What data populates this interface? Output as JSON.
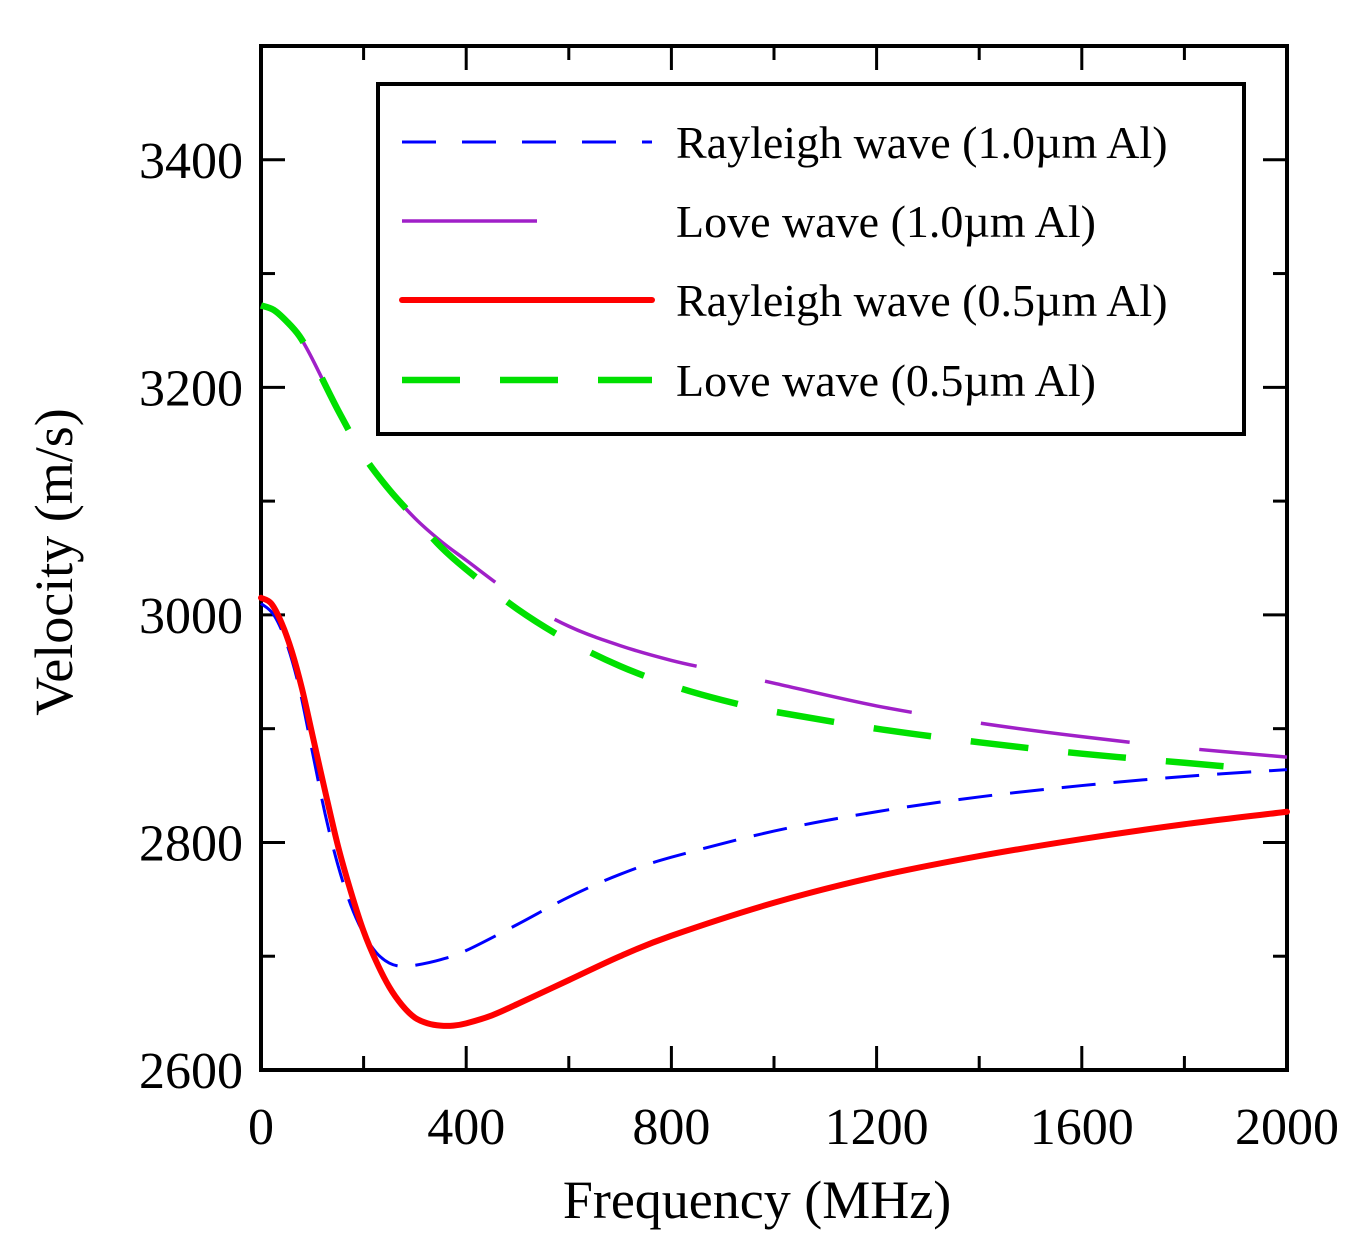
{
  "chart_data": {
    "type": "line",
    "title": "",
    "xlabel": "Frequency (MHz)",
    "ylabel": "Velocity (m/s)",
    "xlim": [
      0,
      2000
    ],
    "ylim": [
      2600,
      3500
    ],
    "x_ticks": [
      0,
      400,
      800,
      1200,
      1600,
      2000
    ],
    "x_tick_labels": [
      "0",
      "400",
      "800",
      "1200",
      "1600",
      "2000"
    ],
    "y_ticks": [
      2600,
      2800,
      3000,
      3200,
      3400
    ],
    "y_tick_labels": [
      "2600",
      "2800",
      "3000",
      "3200",
      "3400"
    ],
    "grid": false,
    "legend_position": "top-right",
    "series": [
      {
        "name": "Rayleigh wave (1.0µm Al)",
        "color": "#0000ff",
        "style": "dashed-short",
        "x": [
          0,
          25,
          50,
          75,
          100,
          125,
          150,
          175,
          200,
          225,
          250,
          275,
          300,
          350,
          400,
          500,
          600,
          700,
          800,
          1000,
          1200,
          1400,
          1600,
          1800,
          2000
        ],
        "y": [
          3010,
          3000,
          2975,
          2935,
          2880,
          2825,
          2780,
          2745,
          2720,
          2703,
          2694,
          2691,
          2692,
          2697,
          2705,
          2728,
          2752,
          2772,
          2787,
          2810,
          2827,
          2840,
          2850,
          2858,
          2864
        ]
      },
      {
        "name": "Love wave (1.0µm Al)",
        "color": "#a020c8",
        "style": "long-dash",
        "x": [
          0,
          25,
          50,
          75,
          100,
          150,
          200,
          250,
          300,
          350,
          400,
          500,
          600,
          700,
          800,
          900,
          1000,
          1200,
          1400,
          1600,
          1800,
          2000
        ],
        "y": [
          3272,
          3268,
          3258,
          3245,
          3225,
          3180,
          3140,
          3110,
          3085,
          3065,
          3048,
          3015,
          2990,
          2973,
          2960,
          2950,
          2940,
          2920,
          2905,
          2893,
          2883,
          2875
        ]
      },
      {
        "name": "Rayleigh wave (0.5µm Al)",
        "color": "#ff0000",
        "style": "solid",
        "x": [
          0,
          20,
          40,
          60,
          80,
          100,
          125,
          150,
          175,
          200,
          225,
          250,
          275,
          300,
          325,
          350,
          375,
          400,
          450,
          500,
          600,
          700,
          800,
          1000,
          1200,
          1400,
          1600,
          1800,
          2000
        ],
        "y": [
          3015,
          3010,
          2993,
          2968,
          2935,
          2895,
          2845,
          2797,
          2757,
          2722,
          2695,
          2673,
          2657,
          2646,
          2641,
          2639,
          2639,
          2641,
          2648,
          2658,
          2679,
          2700,
          2718,
          2747,
          2770,
          2788,
          2803,
          2816,
          2827
        ]
      },
      {
        "name": "Love wave (0.5µm Al)",
        "color": "#00e000",
        "style": "long-dash-thick",
        "x": [
          0,
          25,
          50,
          75,
          100,
          150,
          200,
          250,
          300,
          350,
          400,
          500,
          600,
          700,
          800,
          900,
          1000,
          1200,
          1400,
          1600,
          1800,
          1900
        ],
        "y": [
          3272,
          3268,
          3258,
          3245,
          3225,
          3180,
          3140,
          3110,
          3085,
          3060,
          3040,
          3005,
          2977,
          2955,
          2938,
          2925,
          2915,
          2900,
          2888,
          2878,
          2870,
          2866
        ]
      }
    ]
  }
}
